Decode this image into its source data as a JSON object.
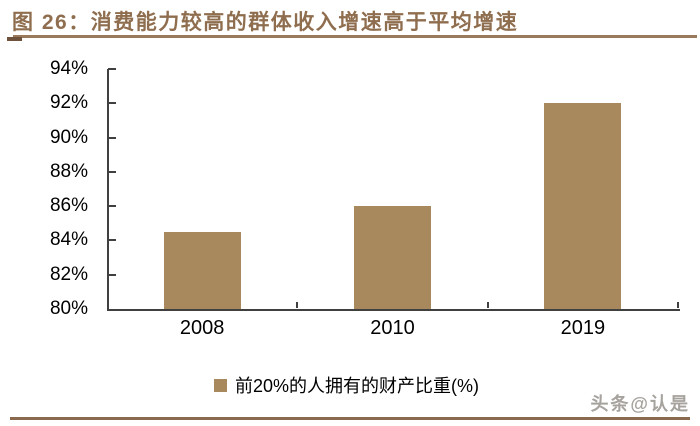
{
  "figure": {
    "title": "图 26：消费能力较高的群体收入增速高于平均增速",
    "watermark": "头条@认是"
  },
  "colors": {
    "bar": "#A8885D",
    "title": "#8F6E4F",
    "rule": "#9A7A5C",
    "rule_dark": "#6E523B",
    "axis": "#404040",
    "tick_label": "#000000",
    "watermark": "#A6A29D",
    "bottom_rule": "#8A6A4E"
  },
  "chart_data": {
    "type": "bar",
    "title": "图 26：消费能力较高的群体收入增速高于平均增速",
    "categories": [
      "2008",
      "2010",
      "2019"
    ],
    "series": [
      {
        "name": "前20%的人拥有的财产比重(%)",
        "values": [
          84.5,
          86,
          92
        ]
      }
    ],
    "xlabel": "",
    "ylabel": "",
    "ylim": [
      80,
      94
    ],
    "ytick_step": 2,
    "ytick_labels": [
      "80%",
      "82%",
      "84%",
      "86%",
      "88%",
      "90%",
      "92%",
      "94%"
    ],
    "grid": false,
    "legend_position": "bottom",
    "bar_color": "#A8885D"
  }
}
